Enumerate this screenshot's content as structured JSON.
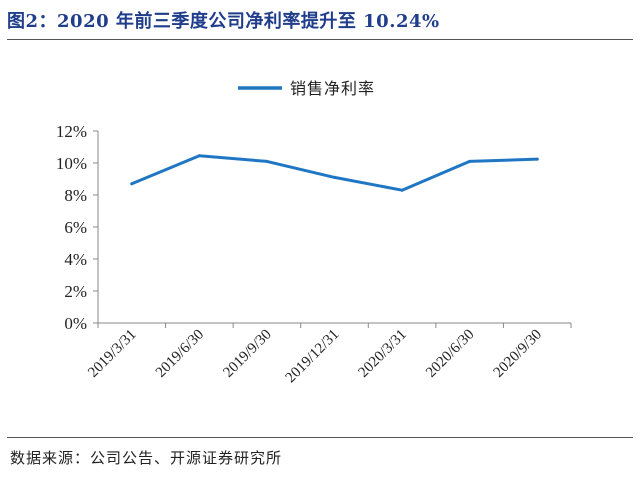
{
  "figure": {
    "title": "图2：2020 年前三季度公司净利率提升至 10.24%",
    "source": "数据来源：公司公告、开源证券研究所"
  },
  "chart_data": {
    "type": "line",
    "title": "",
    "xlabel": "",
    "ylabel": "",
    "categories": [
      "2019/3/31",
      "2019/6/30",
      "2019/9/30",
      "2019/12/31",
      "2020/3/31",
      "2020/6/30",
      "2020/9/30"
    ],
    "series": [
      {
        "name": "销售净利率",
        "values": [
          8.7,
          10.45,
          10.1,
          9.1,
          8.3,
          10.1,
          10.24
        ],
        "color": "#1f77c4"
      }
    ],
    "ylim": [
      0,
      12
    ],
    "yticks": [
      "0%",
      "2%",
      "4%",
      "6%",
      "8%",
      "10%",
      "12%"
    ],
    "ytick_values": [
      0,
      2,
      4,
      6,
      8,
      10,
      12
    ],
    "grid": false,
    "legend_position": "top-center",
    "axis_color": "#888888"
  }
}
